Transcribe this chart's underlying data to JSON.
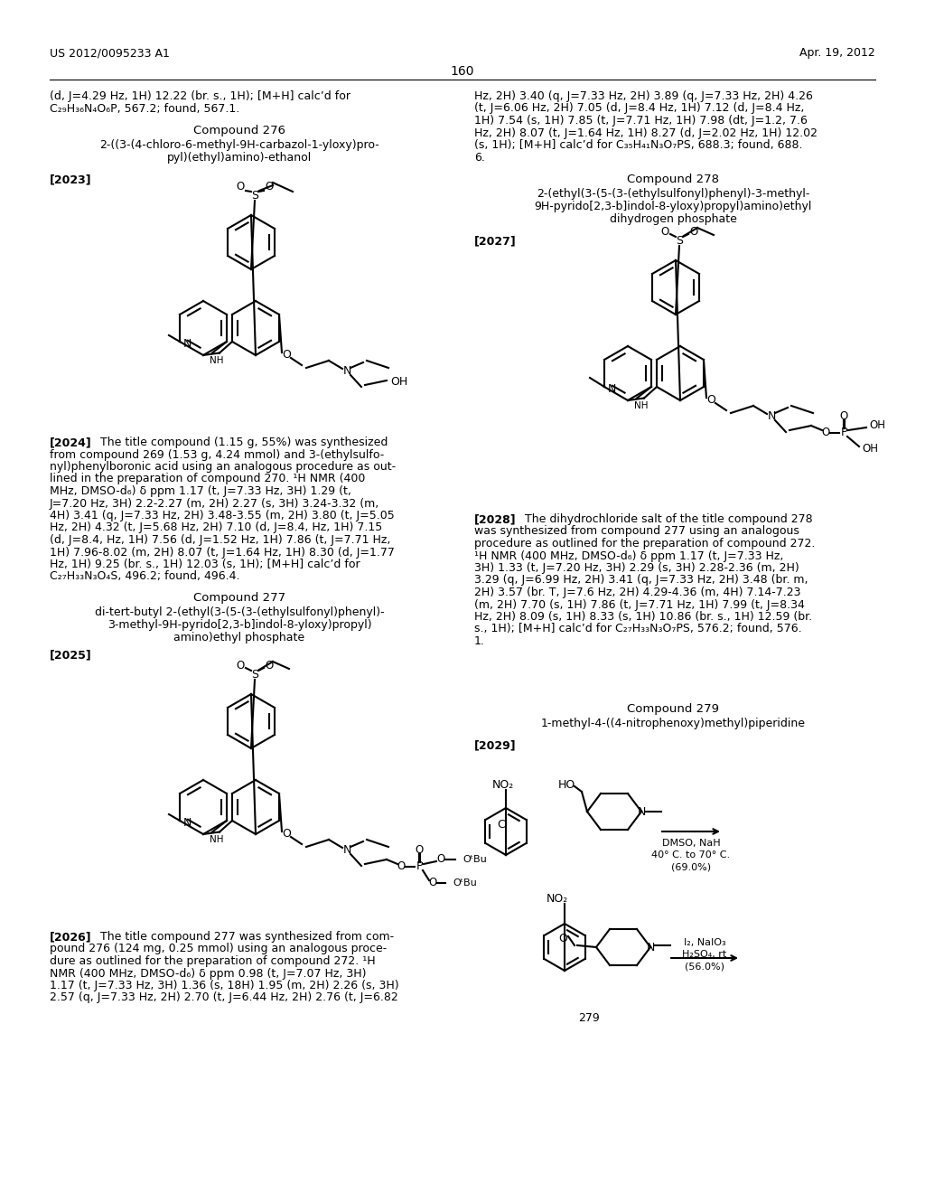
{
  "bg": "#ffffff",
  "header_left": "US 2012/0095233 A1",
  "header_right": "Apr. 19, 2012",
  "page_num": "160"
}
